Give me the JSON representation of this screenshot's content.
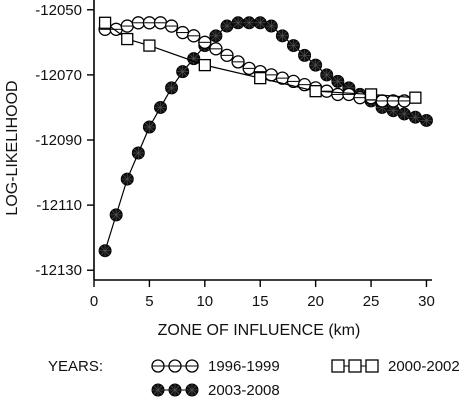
{
  "chart_data": {
    "type": "line",
    "xlabel": "ZONE OF INFLUENCE (km)",
    "ylabel": "LOG-LIKELIHOOD",
    "xlim": [
      0,
      30.5
    ],
    "ylim": [
      -12133,
      -12047
    ],
    "xticks": [
      0,
      5,
      10,
      15,
      20,
      25,
      30
    ],
    "yticks": [
      -12050,
      -12070,
      -12090,
      -12110,
      -12130
    ],
    "grid": false,
    "legend": {
      "title": "YEARS:",
      "placement": "bottom",
      "entries": [
        "1996-1999",
        "2000-2002",
        "2003-2008"
      ]
    },
    "series": [
      {
        "name": "1996-1999",
        "marker": "circle-open",
        "x": [
          1,
          2,
          3,
          4,
          5,
          6,
          7,
          8,
          9,
          10,
          11,
          12,
          13,
          14,
          15,
          16,
          17,
          18,
          19,
          20,
          21,
          22,
          23,
          24,
          25,
          26,
          27,
          28
        ],
        "y": [
          -12056,
          -12056,
          -12055,
          -12054,
          -12054,
          -12054,
          -12055,
          -12057,
          -12058,
          -12060,
          -12062,
          -12064,
          -12066,
          -12068,
          -12069,
          -12070,
          -12071,
          -12072,
          -12073,
          -12074,
          -12075,
          -12076,
          -12076,
          -12077,
          -12077,
          -12078,
          -12078,
          -12078
        ]
      },
      {
        "name": "2000-2002",
        "marker": "square-open",
        "x": [
          1,
          3,
          5,
          10,
          15,
          20,
          25,
          29
        ],
        "y": [
          -12054,
          -12059,
          -12061,
          -12067,
          -12071,
          -12075,
          -12076,
          -12077
        ]
      },
      {
        "name": "2003-2008",
        "marker": "circle-filled",
        "x": [
          1,
          2,
          3,
          4,
          5,
          6,
          7,
          8,
          9,
          10,
          11,
          12,
          13,
          14,
          15,
          16,
          17,
          18,
          19,
          20,
          21,
          22,
          23,
          24,
          25,
          26,
          27,
          28,
          29,
          30
        ],
        "y": [
          -12124,
          -12113,
          -12102,
          -12094,
          -12086,
          -12080,
          -12074,
          -12069,
          -12065,
          -12061,
          -12058,
          -12055,
          -12054,
          -12054,
          -12054,
          -12055,
          -12058,
          -12061,
          -12064,
          -12067,
          -12070,
          -12072,
          -12074,
          -12076,
          -12078,
          -12080,
          -12081,
          -12082,
          -12083,
          -12084
        ]
      }
    ]
  }
}
